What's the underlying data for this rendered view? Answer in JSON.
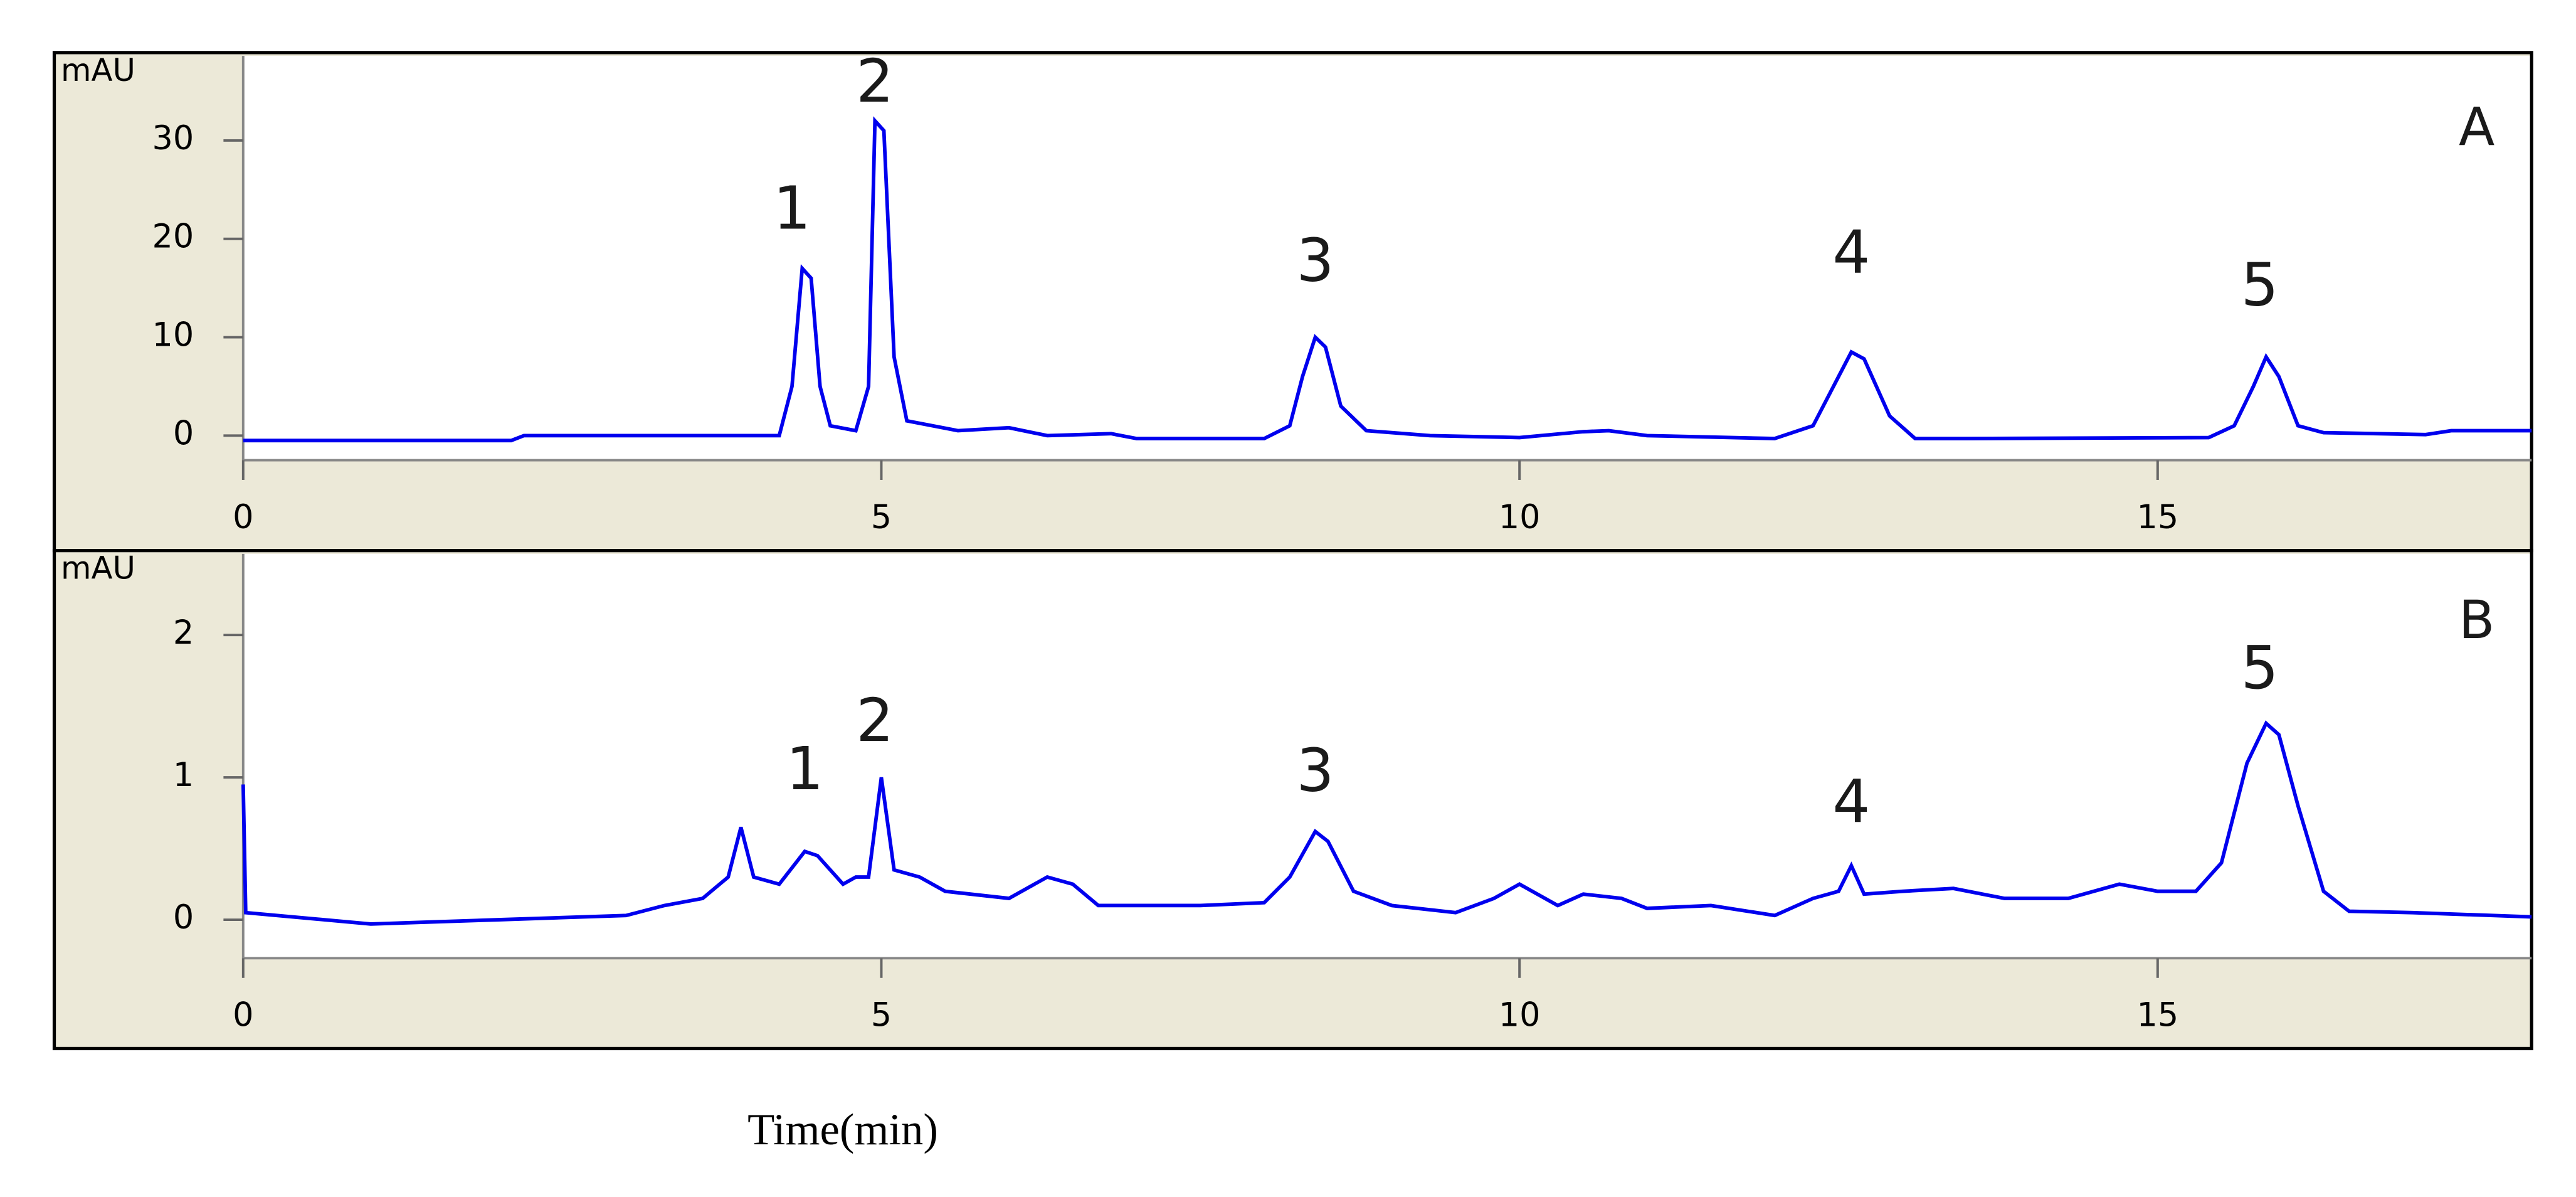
{
  "chart_data": [
    {
      "type": "line",
      "y_label": "mAU",
      "panel_label": "A",
      "xlim": [
        0,
        17.93
      ],
      "ylim": [
        -2.5,
        38.6
      ],
      "xticks": [
        0,
        5,
        10,
        15
      ],
      "yticks": [
        0,
        10,
        20,
        30
      ],
      "series": [
        {
          "color": "#0000ee",
          "x": [
            0,
            2.1,
            2.2,
            4.2,
            4.3,
            4.38,
            4.45,
            4.52,
            4.6,
            4.8,
            4.9,
            4.95,
            5.02,
            5.1,
            5.2,
            5.6,
            6,
            6.3,
            6.8,
            7,
            8,
            8.2,
            8.3,
            8.4,
            8.48,
            8.6,
            8.8,
            9.3,
            10,
            10.5,
            10.7,
            11,
            12,
            12.3,
            12.5,
            12.6,
            12.7,
            12.9,
            13.1,
            13.5,
            15.4,
            15.6,
            15.75,
            15.85,
            15.95,
            16.1,
            16.3,
            17.1,
            17.3,
            17.93
          ],
          "values": [
            -0.5,
            -0.5,
            0,
            0,
            5,
            17,
            16,
            5,
            1,
            0.5,
            5,
            32,
            31,
            8,
            1.5,
            0.5,
            0.8,
            0,
            0.2,
            -0.3,
            -0.3,
            1,
            6,
            10,
            9,
            3,
            0.5,
            0,
            -0.2,
            0.4,
            0.5,
            0,
            -0.3,
            1,
            6,
            8.5,
            7.8,
            2,
            -0.3,
            -0.3,
            -0.2,
            1,
            5,
            8,
            6,
            1,
            0.3,
            0.1,
            0.5,
            0.5
          ]
        }
      ],
      "annotations": [
        {
          "text": "1",
          "x": 4.3,
          "y": 22.7
        },
        {
          "text": "2",
          "x": 4.95,
          "y": 35.6
        },
        {
          "text": "3",
          "x": 8.4,
          "y": 17.4
        },
        {
          "text": "4",
          "x": 12.6,
          "y": 18.2
        },
        {
          "text": "5",
          "x": 15.8,
          "y": 14.9
        }
      ],
      "panel_label_position": [
        17.5,
        31
      ]
    },
    {
      "type": "line",
      "y_label": "mAU",
      "panel_label": "B",
      "x_label": "Time(min)",
      "xlim": [
        0,
        17.93
      ],
      "ylim": [
        -0.27,
        2.57
      ],
      "xticks": [
        0,
        5,
        10,
        15
      ],
      "yticks": [
        0,
        1,
        2
      ],
      "series": [
        {
          "color": "#0000ee",
          "x": [
            0,
            0.02,
            1,
            2,
            3,
            3.3,
            3.6,
            3.8,
            3.9,
            4.0,
            4.2,
            4.4,
            4.5,
            4.7,
            4.8,
            4.9,
            5.0,
            5.1,
            5.3,
            5.5,
            6.0,
            6.3,
            6.5,
            6.7,
            7.5,
            8.0,
            8.2,
            8.4,
            8.5,
            8.7,
            9.0,
            9.5,
            9.8,
            10.0,
            10.3,
            10.5,
            10.8,
            11,
            11.5,
            12,
            12.3,
            12.5,
            12.6,
            12.7,
            13.0,
            13.4,
            13.8,
            14.3,
            14.7,
            15.0,
            15.3,
            15.5,
            15.7,
            15.85,
            15.95,
            16.1,
            16.3,
            16.5,
            17,
            17.93
          ],
          "values": [
            0.95,
            0.05,
            -0.03,
            0.0,
            0.03,
            0.1,
            0.15,
            0.3,
            0.65,
            0.3,
            0.25,
            0.48,
            0.45,
            0.25,
            0.3,
            0.3,
            1.0,
            0.35,
            0.3,
            0.2,
            0.15,
            0.3,
            0.25,
            0.1,
            0.1,
            0.12,
            0.3,
            0.62,
            0.55,
            0.2,
            0.1,
            0.05,
            0.15,
            0.25,
            0.1,
            0.18,
            0.15,
            0.08,
            0.1,
            0.03,
            0.15,
            0.2,
            0.38,
            0.18,
            0.2,
            0.22,
            0.15,
            0.15,
            0.25,
            0.2,
            0.2,
            0.4,
            1.1,
            1.38,
            1.3,
            0.8,
            0.2,
            0.06,
            0.05,
            0.02
          ]
        }
      ],
      "annotations": [
        {
          "text": "1",
          "x": 4.4,
          "y": 1.03
        },
        {
          "text": "2",
          "x": 4.95,
          "y": 1.37
        },
        {
          "text": "3",
          "x": 8.4,
          "y": 1.02
        },
        {
          "text": "4",
          "x": 12.6,
          "y": 0.8
        },
        {
          "text": "5",
          "x": 15.8,
          "y": 1.74
        }
      ],
      "panel_label_position": [
        17.5,
        2.08
      ]
    }
  ]
}
